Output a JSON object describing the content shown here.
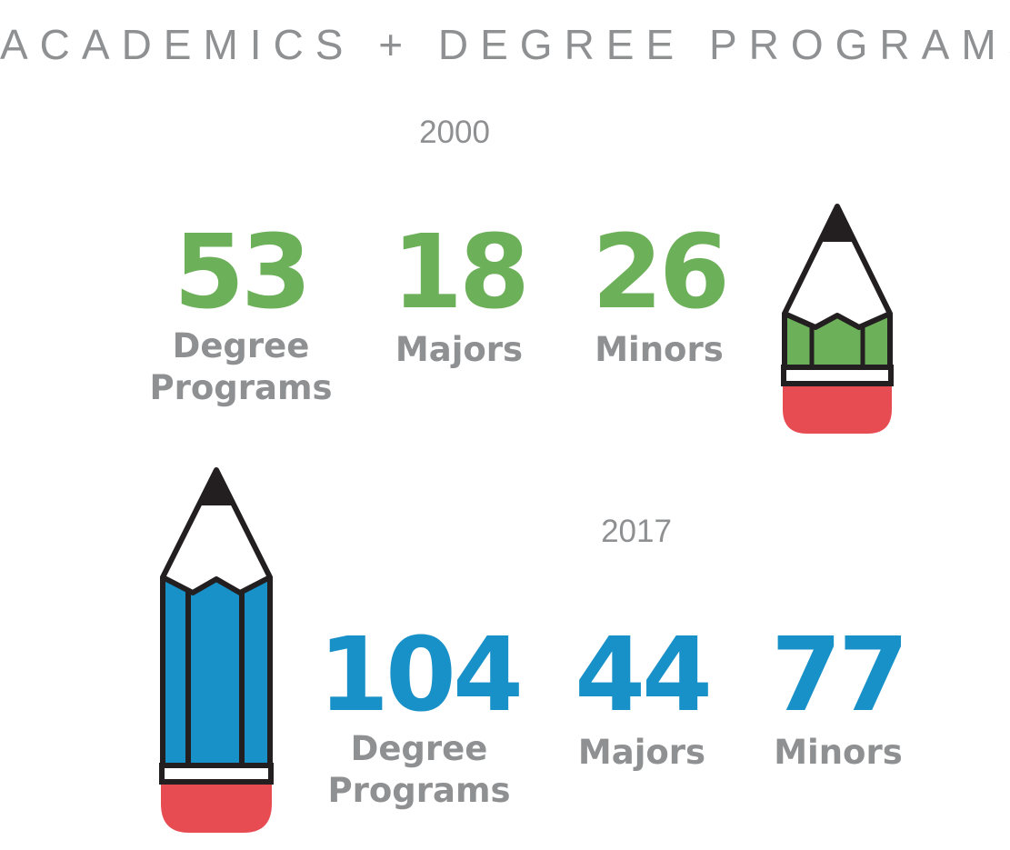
{
  "title": "ACADEMICS + DEGREE PROGRAMS",
  "colors": {
    "green": "#6db05a",
    "blue": "#1890c8",
    "gray": "#8f9092",
    "eraser": "#e84c53",
    "outline": "#231f20"
  },
  "icons": {
    "pencil_2000": "green-pencil-icon",
    "pencil_2017": "blue-pencil-icon"
  },
  "year_2000": {
    "year": "2000",
    "stats": [
      {
        "value": "53",
        "label": "Degree\nPrograms"
      },
      {
        "value": "18",
        "label": "Majors"
      },
      {
        "value": "26",
        "label": "Minors"
      }
    ]
  },
  "year_2017": {
    "year": "2017",
    "stats": [
      {
        "value": "104",
        "label": "Degree\nPrograms"
      },
      {
        "value": "44",
        "label": "Majors"
      },
      {
        "value": "77",
        "label": "Minors"
      }
    ]
  }
}
